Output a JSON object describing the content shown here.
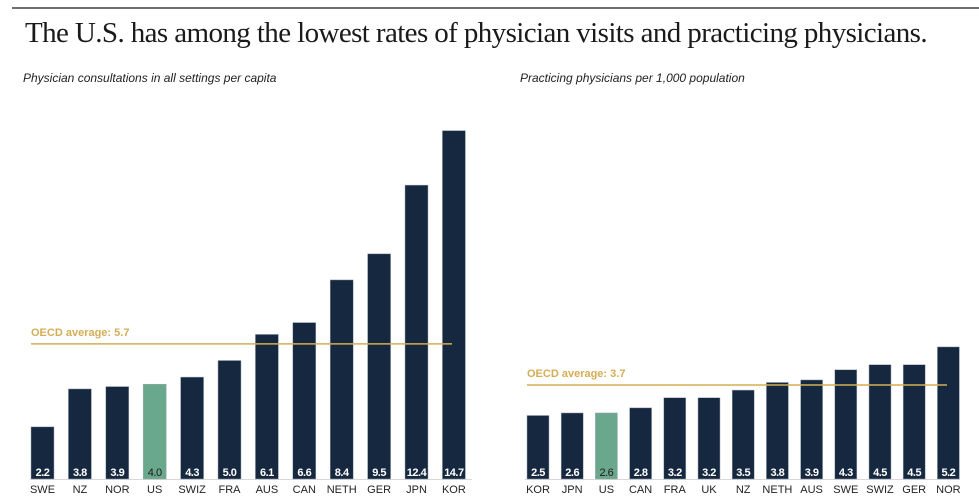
{
  "title": "The U.S. has among the lowest rates of physician visits and practicing physicians.",
  "colors": {
    "bar": "#16283f",
    "highlight": "#6aa88d",
    "average": "#d4ad54",
    "label_text": "#ffffff",
    "highlight_label_text": "#1a1a1a",
    "axis_text": "#222222"
  },
  "chart_data": [
    {
      "type": "bar",
      "title": "Physician consultations in all settings per capita",
      "xlabel": "",
      "ylabel": "",
      "categories": [
        "SWE",
        "NZ",
        "NOR",
        "US",
        "SWIZ",
        "FRA",
        "AUS",
        "CAN",
        "NETH",
        "GER",
        "JPN",
        "KOR"
      ],
      "values": [
        2.2,
        3.8,
        3.9,
        4.0,
        4.3,
        5.0,
        6.1,
        6.6,
        8.4,
        9.5,
        12.4,
        14.7
      ],
      "value_labels": [
        "2.2",
        "3.8",
        "3.9",
        "4.0",
        "4.3",
        "5.0",
        "6.1",
        "6.6",
        "8.4",
        "9.5",
        "12.4",
        "14.7"
      ],
      "highlight": "US",
      "reference_line": {
        "label": "OECD average: 5.7",
        "value": 5.7
      },
      "ylim": [
        0,
        14.7
      ],
      "grid": false
    },
    {
      "type": "bar",
      "title": "Practicing physicians per 1,000 population",
      "xlabel": "",
      "ylabel": "",
      "categories": [
        "KOR",
        "JPN",
        "US",
        "CAN",
        "FRA",
        "UK",
        "NZ",
        "NETH",
        "AUS",
        "SWE",
        "SWIZ",
        "GER",
        "NOR"
      ],
      "values": [
        2.5,
        2.6,
        2.6,
        2.8,
        3.2,
        3.2,
        3.5,
        3.8,
        3.9,
        4.3,
        4.5,
        4.5,
        5.2
      ],
      "value_labels": [
        "2.5",
        "2.6",
        "2.6",
        "2.8",
        "3.2",
        "3.2",
        "3.5",
        "3.8",
        "3.9",
        "4.3",
        "4.5",
        "4.5",
        "5.2"
      ],
      "highlight": "US",
      "reference_line": {
        "label": "OECD average: 3.7",
        "value": 3.7
      },
      "ylim": [
        0,
        5.2
      ],
      "grid": false
    }
  ]
}
